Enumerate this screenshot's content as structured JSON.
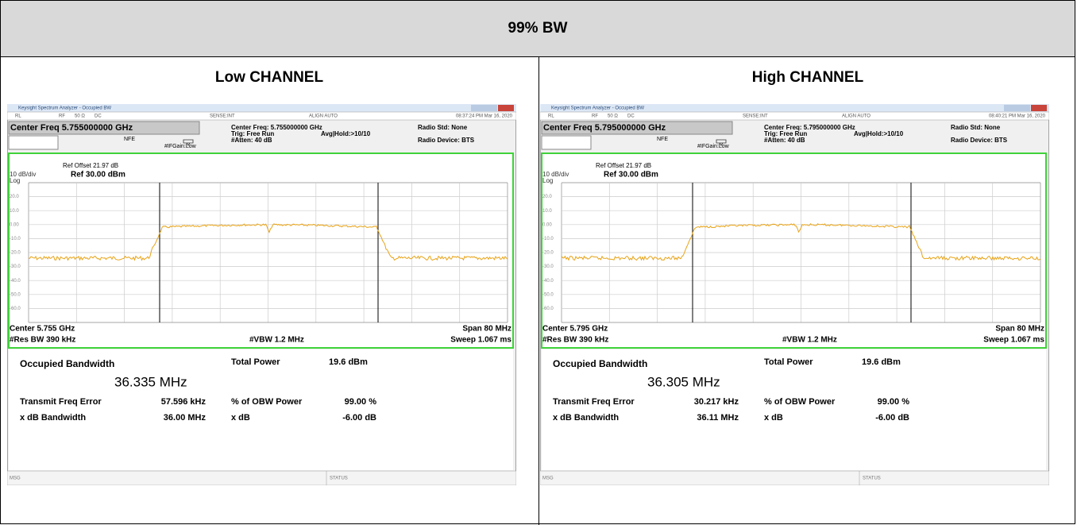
{
  "table": {
    "title": "99% BW",
    "columns": [
      {
        "heading": "Low CHANNEL",
        "screen": {
          "window_title": "Keysight Spectrum Analyzer - Occupied BW",
          "status_bar": [
            "RL",
            "RF",
            "50 Ω",
            "DC",
            "SENSE:INT",
            "ALIGN AUTO",
            "08:37:24 PM Mar 16, 2020"
          ],
          "center_freq_box": "Center Freq 5.755000000 GHz",
          "nfe": "NFE",
          "if_gain": "#IFGain:Low",
          "settings": [
            "Center Freq: 5.755000000 GHz",
            "Trig: Free Run",
            "#Atten: 40 dB"
          ],
          "avg_hold": "Avg|Hold:>10/10",
          "radio_std": "Radio Std: None",
          "radio_device": "Radio Device: BTS",
          "ref_offset": "Ref Offset 21.97 dB",
          "scale": "10 dB/div",
          "ref_level": "Ref 30.00 dBm",
          "log": "Log",
          "y_labels": [
            "20.0",
            "10.0",
            "0.00",
            "-10.0",
            "-20.0",
            "-30.0",
            "-40.0",
            "-50.0",
            "-60.0"
          ],
          "center": "Center 5.755 GHz",
          "res_bw": "#Res BW 390 kHz",
          "vbw": "#VBW 1.2 MHz",
          "span": "Span 80 MHz",
          "sweep": "Sweep 1.067 ms",
          "occupied_bandwidth_label": "Occupied Bandwidth",
          "occupied_bandwidth": "36.335 MHz",
          "total_power_label": "Total Power",
          "total_power": "19.6 dBm",
          "freq_error_label": "Transmit Freq Error",
          "freq_error": "57.596 kHz",
          "obw_power_label": "% of OBW Power",
          "obw_power": "99.00 %",
          "xdb_bandwidth_label": "x dB Bandwidth",
          "xdb_bandwidth": "36.00 MHz",
          "xdb_label": "x dB",
          "xdb": "-6.00 dB",
          "msg": "MSG",
          "status": "STATUS"
        }
      },
      {
        "heading": "High CHANNEL",
        "screen": {
          "window_title": "Keysight Spectrum Analyzer - Occupied BW",
          "status_bar": [
            "RL",
            "RF",
            "50 Ω",
            "DC",
            "SENSE:INT",
            "ALIGN AUTO",
            "08:40:21 PM Mar 16, 2020"
          ],
          "center_freq_box": "Center Freq 5.795000000 GHz",
          "nfe": "NFE",
          "if_gain": "#IFGain:Low",
          "settings": [
            "Center Freq: 5.795000000 GHz",
            "Trig: Free Run",
            "#Atten: 40 dB"
          ],
          "avg_hold": "Avg|Hold:>10/10",
          "radio_std": "Radio Std: None",
          "radio_device": "Radio Device: BTS",
          "ref_offset": "Ref Offset 21.97 dB",
          "scale": "10 dB/div",
          "ref_level": "Ref 30.00 dBm",
          "log": "Log",
          "y_labels": [
            "20.0",
            "10.0",
            "0.00",
            "-10.0",
            "-20.0",
            "-30.0",
            "-40.0",
            "-50.0",
            "-60.0"
          ],
          "center": "Center 5.795 GHz",
          "res_bw": "#Res BW 390 kHz",
          "vbw": "#VBW 1.2 MHz",
          "span": "Span 80 MHz",
          "sweep": "Sweep 1.067 ms",
          "occupied_bandwidth_label": "Occupied Bandwidth",
          "occupied_bandwidth": "36.305 MHz",
          "total_power_label": "Total Power",
          "total_power": "19.6 dBm",
          "freq_error_label": "Transmit Freq Error",
          "freq_error": "30.217 kHz",
          "obw_power_label": "% of OBW Power",
          "obw_power": "99.00 %",
          "xdb_bandwidth_label": "x dB Bandwidth",
          "xdb_bandwidth": "36.11 MHz",
          "xdb_label": "x dB",
          "xdb": "-6.00 dB",
          "msg": "MSG",
          "status": "STATUS"
        }
      }
    ]
  }
}
